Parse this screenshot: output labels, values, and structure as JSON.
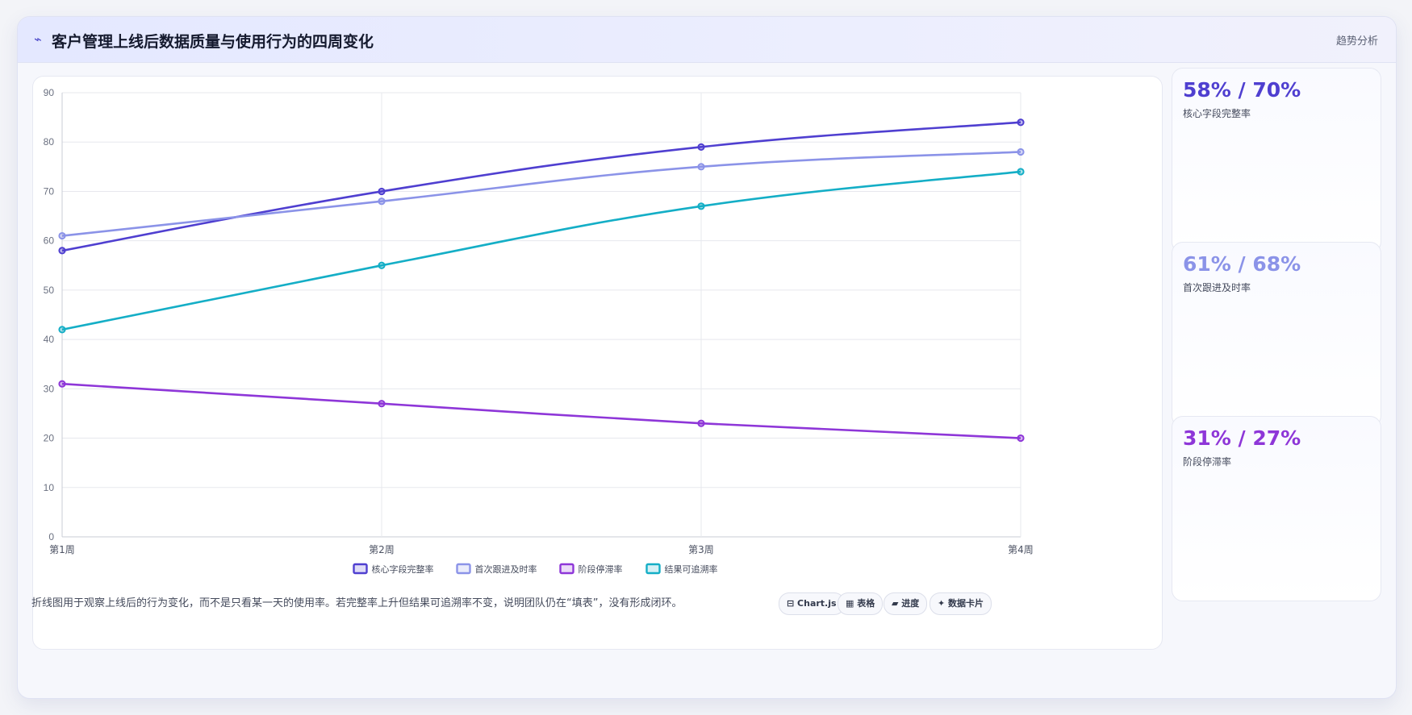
{
  "header": {
    "icon": "⌁",
    "title": "客户管理上线后数据质量与使用行为的四周变化",
    "tag": "趋势分析"
  },
  "chart_data": {
    "type": "line",
    "categories": [
      "第1周",
      "第2周",
      "第3周",
      "第4周"
    ],
    "ylim": [
      0,
      90
    ],
    "yticks": [
      0,
      10,
      20,
      30,
      40,
      50,
      60,
      70,
      80,
      90
    ],
    "grid": true,
    "legend_position": "bottom",
    "series": [
      {
        "name": "核心字段完整率",
        "color": "#4f3fd0",
        "values": [
          58,
          70,
          79,
          84
        ]
      },
      {
        "name": "首次跟进及时率",
        "color": "#8b93e8",
        "values": [
          61,
          68,
          75,
          78
        ]
      },
      {
        "name": "阶段停滞率",
        "color": "#8e36d8",
        "values": [
          31,
          27,
          23,
          20
        ]
      },
      {
        "name": "结果可追溯率",
        "color": "#14aec6",
        "values": [
          42,
          55,
          67,
          74
        ]
      }
    ]
  },
  "kpis": [
    {
      "value": "58% / 70%",
      "label": "核心字段完整率",
      "color": "#4f3fd0"
    },
    {
      "value": "61% / 68%",
      "label": "首次跟进及时率",
      "color": "#8b93e8"
    },
    {
      "value": "31% / 27%",
      "label": "阶段停滞率",
      "color": "#8e36d8"
    }
  ],
  "footer": {
    "note": "折线图用于观察上线后的行为变化，而不是只看某一天的使用率。若完整率上升但结果可追溯率不变，说明团队仍在“填表”，没有形成闭环。",
    "chips": [
      "⊟ Chart.js",
      "▦ 表格",
      "▰ 进度",
      "✦ 数据卡片"
    ]
  }
}
